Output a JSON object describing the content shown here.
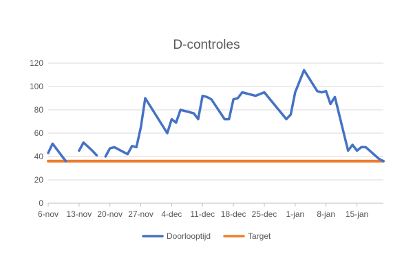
{
  "chart_data": {
    "type": "line",
    "title": "D-controles",
    "xlabel": "",
    "ylabel": "",
    "ylim": [
      0,
      120
    ],
    "yticks": [
      0,
      20,
      40,
      60,
      80,
      100,
      120
    ],
    "grid": "horizontal",
    "legend_position": "bottom",
    "x_start": "2023-11-06",
    "x_end": "2024-01-21",
    "xticks": [
      {
        "date": "2023-11-06",
        "label": "6-nov"
      },
      {
        "date": "2023-11-13",
        "label": "13-nov"
      },
      {
        "date": "2023-11-20",
        "label": "20-nov"
      },
      {
        "date": "2023-11-27",
        "label": "27-nov"
      },
      {
        "date": "2023-12-04",
        "label": "4-dec"
      },
      {
        "date": "2023-12-11",
        "label": "11-dec"
      },
      {
        "date": "2023-12-18",
        "label": "18-dec"
      },
      {
        "date": "2023-12-25",
        "label": "25-dec"
      },
      {
        "date": "2024-01-01",
        "label": "1-jan"
      },
      {
        "date": "2024-01-08",
        "label": "8-jan"
      },
      {
        "date": "2024-01-15",
        "label": "15-jan"
      }
    ],
    "series": [
      {
        "name": "Doorlooptijd",
        "color": "#4472C4",
        "segments": [
          [
            {
              "x": "2023-11-06",
              "y": 43
            },
            {
              "x": "2023-11-07",
              "y": 51
            },
            {
              "x": "2023-11-09",
              "y": 41
            },
            {
              "x": "2023-11-10",
              "y": 36
            }
          ],
          [
            {
              "x": "2023-11-13",
              "y": 45
            },
            {
              "x": "2023-11-14",
              "y": 52
            },
            {
              "x": "2023-11-16",
              "y": 45
            },
            {
              "x": "2023-11-17",
              "y": 41
            }
          ],
          [
            {
              "x": "2023-11-19",
              "y": 40
            },
            {
              "x": "2023-11-20",
              "y": 47
            },
            {
              "x": "2023-11-21",
              "y": 48
            },
            {
              "x": "2023-11-24",
              "y": 42
            },
            {
              "x": "2023-11-25",
              "y": 49
            },
            {
              "x": "2023-11-26",
              "y": 48
            },
            {
              "x": "2023-11-27",
              "y": 65
            },
            {
              "x": "2023-11-28",
              "y": 90
            },
            {
              "x": "2023-12-03",
              "y": 60
            },
            {
              "x": "2023-12-04",
              "y": 72
            },
            {
              "x": "2023-12-05",
              "y": 69
            },
            {
              "x": "2023-12-06",
              "y": 80
            },
            {
              "x": "2023-12-09",
              "y": 77
            },
            {
              "x": "2023-12-10",
              "y": 72
            },
            {
              "x": "2023-12-11",
              "y": 92
            },
            {
              "x": "2023-12-12",
              "y": 91
            },
            {
              "x": "2023-12-13",
              "y": 89
            },
            {
              "x": "2023-12-16",
              "y": 72
            },
            {
              "x": "2023-12-17",
              "y": 72
            },
            {
              "x": "2023-12-18",
              "y": 89
            },
            {
              "x": "2023-12-19",
              "y": 90
            },
            {
              "x": "2023-12-20",
              "y": 95
            },
            {
              "x": "2023-12-23",
              "y": 92
            },
            {
              "x": "2023-12-25",
              "y": 95
            },
            {
              "x": "2023-12-30",
              "y": 72
            },
            {
              "x": "2023-12-31",
              "y": 76
            },
            {
              "x": "2024-01-01",
              "y": 95
            },
            {
              "x": "2024-01-03",
              "y": 114
            },
            {
              "x": "2024-01-06",
              "y": 96
            },
            {
              "x": "2024-01-07",
              "y": 95
            },
            {
              "x": "2024-01-08",
              "y": 96
            },
            {
              "x": "2024-01-09",
              "y": 85
            },
            {
              "x": "2024-01-10",
              "y": 91
            },
            {
              "x": "2024-01-13",
              "y": 45
            },
            {
              "x": "2024-01-14",
              "y": 50
            },
            {
              "x": "2024-01-15",
              "y": 45
            },
            {
              "x": "2024-01-16",
              "y": 48
            },
            {
              "x": "2024-01-17",
              "y": 48
            },
            {
              "x": "2024-01-20",
              "y": 38
            },
            {
              "x": "2024-01-21",
              "y": 36
            }
          ]
        ]
      },
      {
        "name": "Target",
        "color": "#ED7D31",
        "segments": [
          [
            {
              "x": "2023-11-06",
              "y": 36
            },
            {
              "x": "2024-01-21",
              "y": 36
            }
          ]
        ]
      }
    ]
  }
}
